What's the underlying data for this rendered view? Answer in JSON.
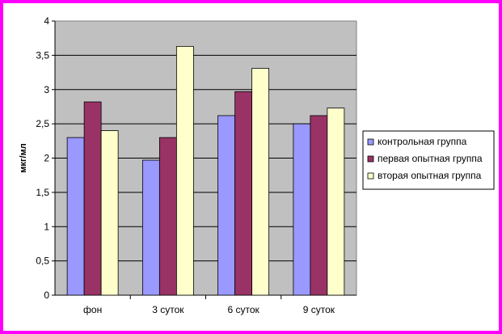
{
  "chart_data": {
    "type": "bar",
    "ylabel": "мкг/мл",
    "ylim": [
      0,
      4
    ],
    "ytick_step": 0.5,
    "ytick_labels": [
      "0",
      "0,5",
      "1",
      "1,5",
      "2",
      "2,5",
      "3",
      "3,5",
      "4"
    ],
    "categories": [
      "фон",
      "3 суток",
      "6 суток",
      "9 суток"
    ],
    "grid": true,
    "legend_position": "right",
    "series": [
      {
        "name": "контрольная группа",
        "color": "#9999ff",
        "values": [
          2.3,
          1.97,
          2.62,
          2.5
        ]
      },
      {
        "name": "первая опытная группа",
        "color": "#993366",
        "values": [
          2.82,
          2.3,
          2.97,
          2.62
        ]
      },
      {
        "name": "вторая опытная группа",
        "color": "#ffffcc",
        "values": [
          2.4,
          3.63,
          3.31,
          2.73
        ]
      }
    ],
    "plot_background": "#c0c0c0"
  }
}
